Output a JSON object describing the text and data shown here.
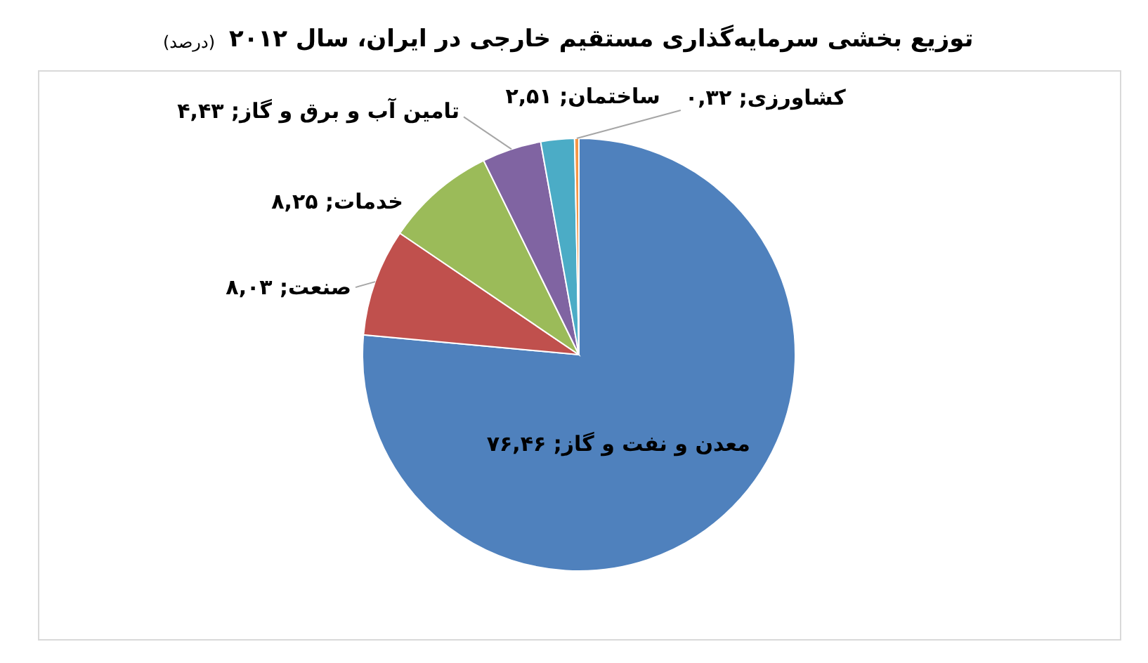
{
  "chart_data": {
    "type": "pie",
    "title": "توزیع بخشی سرمایه‌گذاری مستقیم خارجی در ایران، سال ۲۰۱۲",
    "subtitle": "(درصد)",
    "categories": [
      "معدن و نفت و گاز",
      "صنعت",
      "خدمات",
      "تامین آب و برق و گاز",
      "ساختمان",
      "کشاورزی"
    ],
    "values": [
      76.46,
      8.03,
      8.25,
      4.43,
      2.51,
      0.32
    ],
    "colors": [
      "#4f81bd",
      "#c0504d",
      "#9bbb59",
      "#8064a2",
      "#4bacc6",
      "#f79646"
    ],
    "value_labels": [
      "۷۶,۴۶",
      "۸,۰۳",
      "۸,۲۵",
      "۴,۴۳",
      "۲,۵۱",
      "۰,۳۲"
    ],
    "legend": false
  }
}
